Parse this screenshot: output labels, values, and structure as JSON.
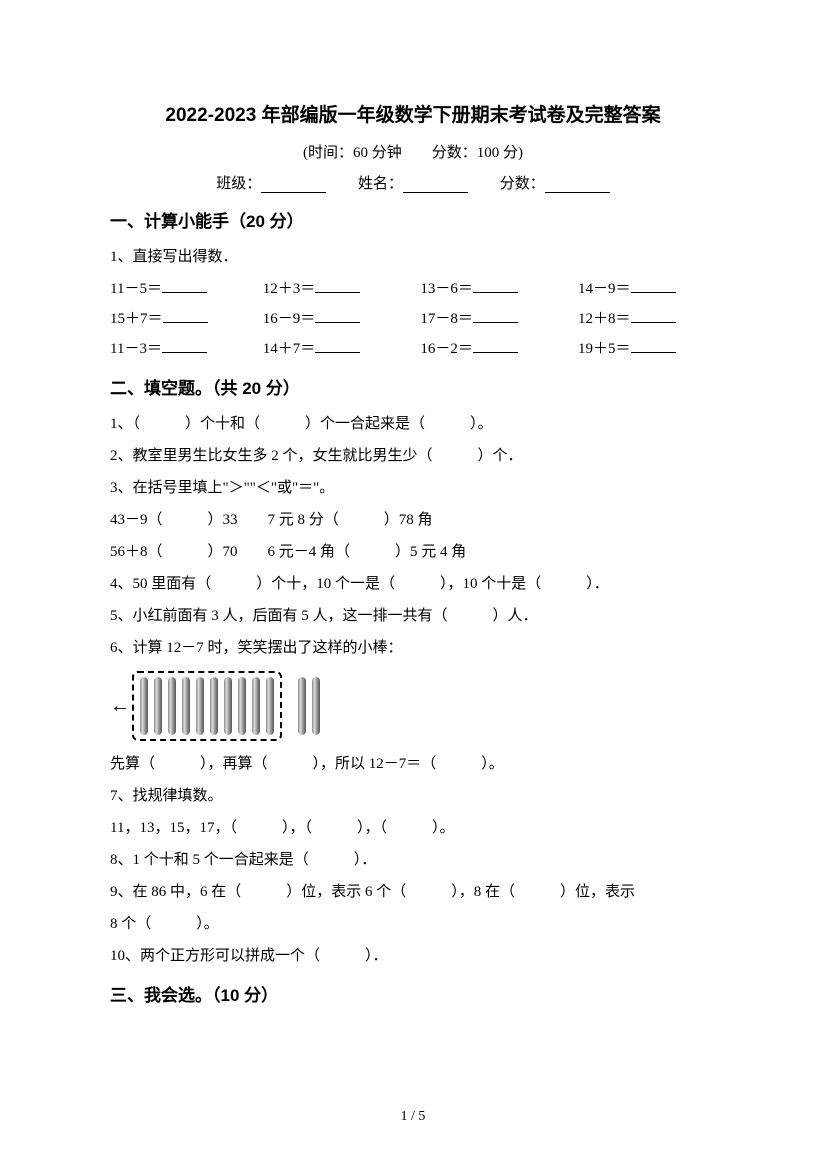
{
  "title": "2022-2023 年部编版一年级数学下册期末考试卷及完整答案",
  "subtitle": "(时间：60 分钟　　分数：100 分)",
  "info": {
    "class_label": "班级：",
    "name_label": "姓名：",
    "score_label": "分数："
  },
  "section1": {
    "header": "一、计算小能手（20 分）",
    "q1_prompt": "1、直接写出得数．",
    "rows": [
      [
        "11－5＝",
        "12＋3＝",
        "13－6＝",
        "14－9＝"
      ],
      [
        "15＋7＝",
        "16－9＝",
        "17－8＝",
        "12＋8＝"
      ],
      [
        "11－3＝",
        "14＋7＝",
        "16－2＝",
        "19＋5＝"
      ]
    ]
  },
  "section2": {
    "header": "二、填空题。（共 20 分）",
    "q1": "1、（　　　）个十和（　　　）个一合起来是（　　　）。",
    "q2": "2、教室里男生比女生多 2 个，女生就比男生少（　　　）个．",
    "q3": "3、在括号里填上\"＞\"\"＜\"或\"＝\"。",
    "q3a": "43－9（　　　）33　　7 元 8 分（　　　）78 角",
    "q3b": "56＋8（　　　）70　　6 元－4 角（　　　）5 元 4 角",
    "q4": "4、50 里面有（　　　）个十，10 个一是（　　　），10 个十是（　　　）．",
    "q5": "5、小红前面有 3 人，后面有 5 人，这一排一共有（　　　）人．",
    "q6": "6、计算 12－7 时，笑笑摆出了这样的小棒：",
    "q6_after": "先算（　　　），再算（　　　），所以 12－7＝（　　　）。",
    "q7": "7、找规律填数。",
    "q7a": "11，13，15，17，（　　　），（　　　），（　　　）。",
    "q8": "8、1 个十和 5 个一合起来是（　　　）．",
    "q9": "9、在 86 中，6 在（　　　）位，表示 6 个（　　　），8 在（　　　）位，表示",
    "q9b": "8 个（　　　）。",
    "q10": "10、两个正方形可以拼成一个（　　　）．"
  },
  "section3": {
    "header": "三、我会选。（10 分）"
  },
  "sticks": {
    "boxed_count": 10,
    "loose_count": 2,
    "stick_color": "#888888"
  },
  "page_number": "1 / 5",
  "colors": {
    "text": "#000000",
    "background": "#ffffff"
  },
  "fonts": {
    "title_size": 19,
    "section_size": 17,
    "body_size": 15
  }
}
